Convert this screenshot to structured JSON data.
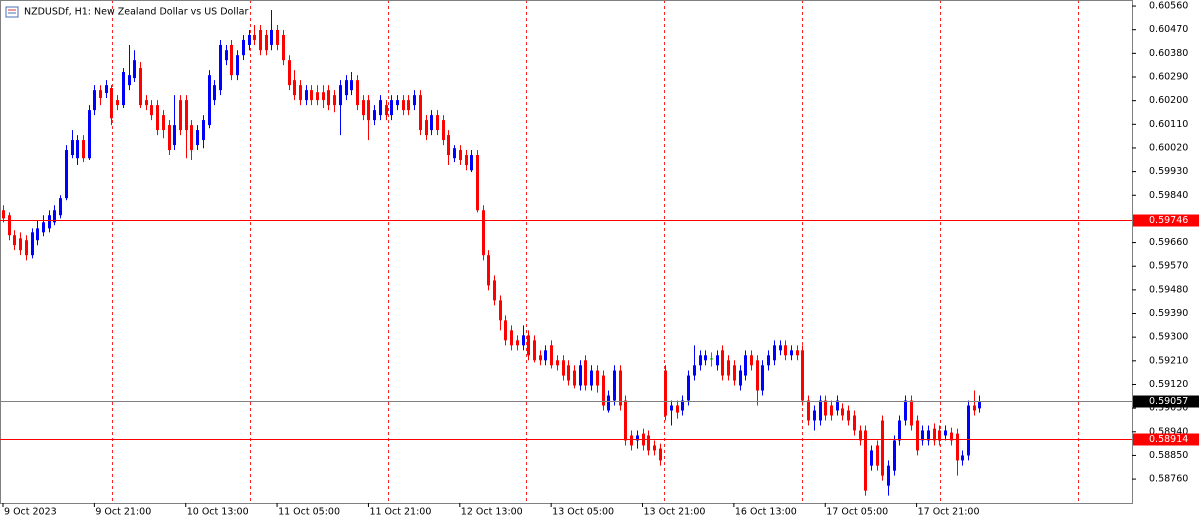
{
  "chart_data": {
    "type": "candlestick",
    "title": "NZDUSDf, H1:  New Zealand Dollar vs US Dollar",
    "categories": [
      "9 Oct 2023",
      null,
      null,
      null,
      null,
      null,
      null,
      null,
      null,
      null,
      null,
      null,
      null,
      null,
      null,
      null,
      "9 Oct 21:00",
      null,
      null,
      null,
      null,
      null,
      null,
      null,
      null,
      null,
      null,
      null,
      null,
      null,
      null,
      null,
      "10 Oct 13:00",
      null,
      null,
      null,
      null,
      null,
      null,
      null,
      null,
      null,
      null,
      null,
      null,
      null,
      null,
      null,
      "11 Oct 05:00",
      null,
      null,
      null,
      null,
      null,
      null,
      null,
      null,
      null,
      null,
      null,
      null,
      null,
      null,
      null,
      "11 Oct 21:00",
      null,
      null,
      null,
      null,
      null,
      null,
      null,
      null,
      null,
      null,
      null,
      null,
      null,
      null,
      null,
      "12 Oct 13:00",
      null,
      null,
      null,
      null,
      null,
      null,
      null,
      null,
      null,
      null,
      null,
      null,
      null,
      null,
      null,
      "13 Oct 05:00",
      null,
      null,
      null,
      null,
      null,
      null,
      null,
      null,
      null,
      null,
      null,
      null,
      null,
      null,
      null,
      "13 Oct 21:00",
      null,
      null,
      null,
      null,
      null,
      null,
      null,
      null,
      null,
      null,
      null,
      null,
      null,
      null,
      null,
      "16 Oct 13:00",
      null,
      null,
      null,
      null,
      null,
      null,
      null,
      null,
      null,
      null,
      null,
      null,
      null,
      null,
      null,
      "17 Oct 05:00",
      null,
      null,
      null,
      null,
      null,
      null,
      null,
      null,
      null,
      null,
      null,
      null,
      null,
      null,
      null,
      "17 Oct 21:00",
      null,
      null,
      null,
      null,
      null,
      null,
      null,
      null,
      null,
      null,
      null
    ],
    "open": [
      0.59783,
      0.59764,
      0.59688,
      0.59676,
      0.59669,
      0.59612,
      0.59669,
      0.59699,
      0.59714,
      0.59737,
      0.59764,
      0.59829,
      0.59993,
      0.59981,
      0.6005,
      0.59981,
      0.60164,
      0.6024,
      0.60229,
      0.60248,
      0.60202,
      0.60183,
      0.60259,
      0.60286,
      0.60324,
      0.60202,
      0.60183,
      0.60183,
      0.60145,
      0.60107,
      0.60031,
      0.60202,
      0.60202,
      0.60107,
      0.60031,
      0.6005,
      0.60107,
      0.60202,
      0.6024,
      0.60354,
      0.60412,
      0.60297,
      0.60373,
      0.60412,
      0.6045,
      0.60469,
      0.6045,
      0.60412,
      0.60469,
      0.6045,
      0.60354,
      0.60278,
      0.60259,
      0.60202,
      0.6024,
      0.60232,
      0.60232,
      0.6024,
      0.60221,
      0.60183,
      0.60221,
      0.6024,
      0.60278,
      0.60202,
      0.60202,
      0.60126,
      0.60145,
      0.60183,
      0.60145,
      0.60183,
      0.60202,
      0.60202,
      0.60183,
      0.60221,
      0.60126,
      0.60088,
      0.60145,
      0.60126,
      0.60069,
      0.59981,
      0.60012,
      0.59993,
      0.59935,
      0.59993,
      0.59783,
      0.59612,
      0.59516,
      0.5944,
      0.59364,
      0.59326,
      0.59288,
      0.59269,
      0.59307,
      0.59288,
      0.59231,
      0.59212,
      0.59269,
      0.59212,
      0.59212,
      0.59193,
      0.59173,
      0.59116,
      0.59212,
      0.59116,
      0.59173,
      0.59154,
      0.59021,
      0.59059,
      0.59173,
      0.59059,
      0.58926,
      0.58907,
      0.58933,
      0.58926,
      0.58888,
      0.58876,
      0.59173,
      0.59021,
      0.5904,
      0.59021,
      0.59059,
      0.59154,
      0.59193,
      0.59212,
      0.59219,
      0.59193,
      0.5925,
      0.59212,
      0.59193,
      0.59116,
      0.59154,
      0.59231,
      0.59212,
      0.59097,
      0.59193,
      0.59212,
      0.5925,
      0.59269,
      0.59231,
      0.5925,
      0.5925,
      0.59059,
      0.58983,
      0.58983,
      0.59059,
      0.5904,
      0.59021,
      0.59029,
      0.59021,
      0.59002,
      0.58945,
      0.58945,
      0.58811,
      0.58888,
      0.58983,
      0.58735,
      0.58792,
      0.58907,
      0.58983,
      0.59059,
      0.58983,
      0.58907,
      0.58907,
      0.58952,
      0.58945,
      0.58926,
      0.58937,
      0.58933,
      0.58831,
      0.5885,
      0.5904,
      0.59029
    ],
    "high": [
      0.59802,
      0.59775,
      0.59707,
      0.59699,
      0.59688,
      0.59714,
      0.59745,
      0.59764,
      0.59783,
      0.59802,
      0.5984,
      0.60031,
      0.60088,
      0.60069,
      0.60069,
      0.60183,
      0.60259,
      0.60259,
      0.60278,
      0.60259,
      0.60221,
      0.60324,
      0.60412,
      0.60392,
      0.60347,
      0.60221,
      0.60202,
      0.60202,
      0.60164,
      0.60126,
      0.60221,
      0.60221,
      0.60221,
      0.60126,
      0.60107,
      0.60145,
      0.60316,
      0.60278,
      0.60431,
      0.60412,
      0.60431,
      0.60392,
      0.6045,
      0.60469,
      0.60488,
      0.60488,
      0.60469,
      0.60545,
      0.60488,
      0.60469,
      0.60373,
      0.60316,
      0.60278,
      0.60259,
      0.60259,
      0.60259,
      0.60259,
      0.60259,
      0.6024,
      0.60278,
      0.60297,
      0.60309,
      0.60297,
      0.60221,
      0.60221,
      0.60183,
      0.60221,
      0.60202,
      0.60221,
      0.60221,
      0.60221,
      0.60221,
      0.6024,
      0.6024,
      0.60145,
      0.60164,
      0.60164,
      0.60145,
      0.60088,
      0.60031,
      0.60031,
      0.60012,
      0.60012,
      0.60012,
      0.59802,
      0.59631,
      0.59535,
      0.59459,
      0.59383,
      0.59345,
      0.59307,
      0.59345,
      0.59326,
      0.59307,
      0.5925,
      0.59269,
      0.59288,
      0.59231,
      0.59231,
      0.59212,
      0.59193,
      0.59212,
      0.59231,
      0.59193,
      0.59193,
      0.59173,
      0.59097,
      0.59193,
      0.59193,
      0.59078,
      0.58945,
      0.58945,
      0.58952,
      0.58945,
      0.58907,
      0.58895,
      0.59193,
      0.59059,
      0.59059,
      0.59078,
      0.59173,
      0.59269,
      0.5925,
      0.5925,
      0.59242,
      0.5925,
      0.59269,
      0.59231,
      0.59212,
      0.59193,
      0.5925,
      0.5925,
      0.59231,
      0.59212,
      0.5925,
      0.59288,
      0.59288,
      0.59288,
      0.59269,
      0.59269,
      0.59269,
      0.59078,
      0.5904,
      0.59078,
      0.59078,
      0.59059,
      0.59078,
      0.59048,
      0.5904,
      0.59021,
      0.58964,
      0.58964,
      0.58888,
      0.58907,
      0.59002,
      0.58831,
      0.58926,
      0.59002,
      0.59078,
      0.59078,
      0.59002,
      0.58964,
      0.58964,
      0.58972,
      0.58964,
      0.58964,
      0.58956,
      0.58952,
      0.58869,
      0.59059,
      0.59097,
      0.59078
    ],
    "low": [
      0.59737,
      0.59669,
      0.59631,
      0.59612,
      0.59592,
      0.596,
      0.5965,
      0.59684,
      0.59699,
      0.59726,
      0.59752,
      0.59821,
      0.59981,
      0.59955,
      0.59966,
      0.59974,
      0.60145,
      0.60183,
      0.6021,
      0.60107,
      0.60164,
      0.60172,
      0.6024,
      0.60271,
      0.60172,
      0.60164,
      0.60126,
      0.60069,
      0.60057,
      0.59993,
      0.60012,
      0.60069,
      0.59981,
      0.59974,
      0.60012,
      0.60019,
      0.60095,
      0.60183,
      0.60221,
      0.60335,
      0.60278,
      0.60278,
      0.60354,
      0.60392,
      0.60412,
      0.60373,
      0.60373,
      0.60392,
      0.60392,
      0.60335,
      0.6024,
      0.60202,
      0.60183,
      0.60183,
      0.60183,
      0.60183,
      0.60172,
      0.60164,
      0.60156,
      0.60069,
      0.60202,
      0.60221,
      0.60164,
      0.60126,
      0.6005,
      0.60107,
      0.60126,
      0.60126,
      0.60126,
      0.60164,
      0.60145,
      0.60145,
      0.60164,
      0.60069,
      0.6005,
      0.60069,
      0.60069,
      0.60031,
      0.59955,
      0.59966,
      0.59955,
      0.59935,
      0.59928,
      0.59775,
      0.59592,
      0.59478,
      0.59421,
      0.59326,
      0.59269,
      0.5925,
      0.5925,
      0.5925,
      0.59212,
      0.59204,
      0.59193,
      0.59193,
      0.59181,
      0.59173,
      0.59135,
      0.59116,
      0.59105,
      0.59097,
      0.59097,
      0.59097,
      0.59089,
      0.59021,
      0.59013,
      0.5904,
      0.59021,
      0.58888,
      0.58869,
      0.58876,
      0.58869,
      0.5885,
      0.5885,
      0.58811,
      0.58983,
      0.58964,
      0.5899,
      0.59002,
      0.5904,
      0.59135,
      0.59173,
      0.59193,
      0.59188,
      0.59173,
      0.59135,
      0.59135,
      0.59116,
      0.59097,
      0.59135,
      0.59173,
      0.5904,
      0.59078,
      0.59173,
      0.59193,
      0.59231,
      0.59212,
      0.59212,
      0.59212,
      0.5904,
      0.58964,
      0.58945,
      0.58964,
      0.58983,
      0.58983,
      0.59002,
      0.58983,
      0.58964,
      0.58926,
      0.58888,
      0.58697,
      0.58792,
      0.58792,
      0.58754,
      0.58697,
      0.58773,
      0.58888,
      0.58964,
      0.58945,
      0.5885,
      0.58888,
      0.58888,
      0.58888,
      0.58888,
      0.58907,
      0.58888,
      0.58773,
      0.58811,
      0.58831,
      0.59002,
      0.59013
    ],
    "close": [
      0.59752,
      0.59688,
      0.5965,
      0.59631,
      0.59612,
      0.59699,
      0.59714,
      0.59737,
      0.59764,
      0.59783,
      0.59829,
      0.60012,
      0.6005,
      0.6005,
      0.59981,
      0.60164,
      0.6024,
      0.6021,
      0.60259,
      0.60133,
      0.60183,
      0.60309,
      0.60297,
      0.60354,
      0.60183,
      0.60183,
      0.60145,
      0.60088,
      0.60088,
      0.60012,
      0.60107,
      0.60088,
      0.60088,
      0.60012,
      0.60088,
      0.60126,
      0.60297,
      0.60259,
      0.60412,
      0.60392,
      0.60297,
      0.60373,
      0.60431,
      0.6045,
      0.60431,
      0.60392,
      0.60392,
      0.60469,
      0.60412,
      0.60354,
      0.60259,
      0.60221,
      0.60202,
      0.6024,
      0.60202,
      0.60202,
      0.60202,
      0.60183,
      0.60183,
      0.60259,
      0.60278,
      0.60278,
      0.60183,
      0.60145,
      0.60126,
      0.60164,
      0.60202,
      0.60145,
      0.60202,
      0.60202,
      0.60164,
      0.60164,
      0.60221,
      0.60088,
      0.60069,
      0.60145,
      0.60088,
      0.6005,
      0.59993,
      0.60019,
      0.59974,
      0.59955,
      0.59993,
      0.59783,
      0.59612,
      0.59497,
      0.5944,
      0.59364,
      0.59288,
      0.59269,
      0.59269,
      0.59307,
      0.59231,
      0.59212,
      0.59212,
      0.5925,
      0.59193,
      0.59193,
      0.59154,
      0.59135,
      0.59116,
      0.59193,
      0.59116,
      0.59173,
      0.59116,
      0.5904,
      0.59078,
      0.59173,
      0.5904,
      0.58907,
      0.58888,
      0.58926,
      0.58888,
      0.58869,
      0.58869,
      0.58831,
      0.59002,
      0.5904,
      0.59013,
      0.59059,
      0.59154,
      0.59193,
      0.59231,
      0.59231,
      0.59219,
      0.59231,
      0.59154,
      0.59154,
      0.59135,
      0.59173,
      0.59231,
      0.59193,
      0.59097,
      0.59193,
      0.59231,
      0.59269,
      0.59269,
      0.59231,
      0.5925,
      0.59231,
      0.59059,
      0.58983,
      0.59021,
      0.59059,
      0.59002,
      0.59002,
      0.59059,
      0.59002,
      0.58983,
      0.58945,
      0.58907,
      0.58716,
      0.58869,
      0.58811,
      0.58773,
      0.58811,
      0.58907,
      0.58983,
      0.59059,
      0.58964,
      0.58869,
      0.58945,
      0.58945,
      0.58907,
      0.58907,
      0.58945,
      0.58907,
      0.58831,
      0.5885,
      0.5904,
      0.59021,
      0.59057
    ],
    "up_color": "#0000ff",
    "down_color": "#ff0000",
    "doji_color": "#00b000",
    "ylim": [
      0.58669,
      0.60583
    ],
    "yticks": [
      {
        "value": 0.6056,
        "label": "0.60560"
      },
      {
        "value": 0.6047,
        "label": "0.60470"
      },
      {
        "value": 0.6038,
        "label": "0.60380"
      },
      {
        "value": 0.6029,
        "label": "0.60290"
      },
      {
        "value": 0.602,
        "label": "0.60200"
      },
      {
        "value": 0.6011,
        "label": "0.60110"
      },
      {
        "value": 0.6002,
        "label": "0.60020"
      },
      {
        "value": 0.5993,
        "label": "0.59930"
      },
      {
        "value": 0.5984,
        "label": "0.59840"
      },
      {
        "value": 0.5966,
        "label": "0.59660"
      },
      {
        "value": 0.5957,
        "label": "0.59570"
      },
      {
        "value": 0.5948,
        "label": "0.59480"
      },
      {
        "value": 0.5939,
        "label": "0.59390"
      },
      {
        "value": 0.593,
        "label": "0.59300"
      },
      {
        "value": 0.5921,
        "label": "0.59210"
      },
      {
        "value": 0.5912,
        "label": "0.59120"
      },
      {
        "value": 0.5903,
        "label": "0.59030"
      },
      {
        "value": 0.5894,
        "label": "0.58940"
      },
      {
        "value": 0.5885,
        "label": "0.58850"
      },
      {
        "value": 0.5876,
        "label": "0.58760"
      }
    ],
    "hlines": [
      {
        "value": 0.59746,
        "color": "#ff0000",
        "label_color": "#ff0000"
      },
      {
        "value": 0.58914,
        "color": "#ff0000",
        "label_color": "#ff0000"
      },
      {
        "value": 0.59057,
        "color": "#808080",
        "label_color": "#000000"
      }
    ]
  }
}
